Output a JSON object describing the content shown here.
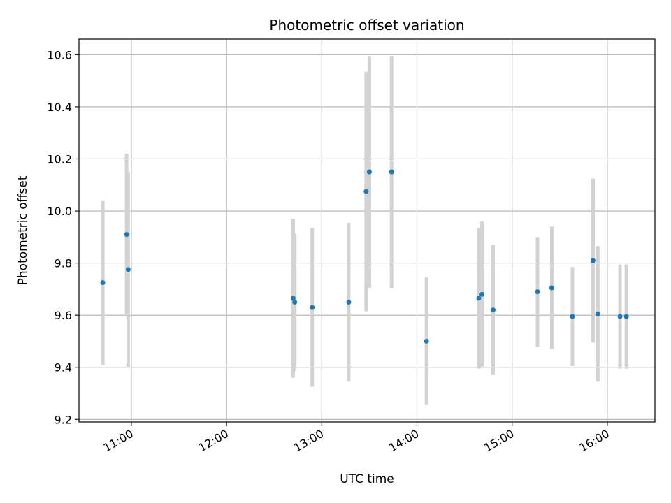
{
  "chart_data": {
    "type": "scatter",
    "title": "Photometric offset variation",
    "xlabel": "UTC time",
    "ylabel": "Photometric offset",
    "x_axis": "time",
    "xlim": [
      "10:27",
      "16:30"
    ],
    "ylim": [
      9.19,
      10.66
    ],
    "x_ticks": [
      "11:00",
      "12:00",
      "13:00",
      "14:00",
      "15:00",
      "16:00"
    ],
    "y_ticks": [
      9.2,
      9.4,
      9.6,
      9.8,
      10.0,
      10.2,
      10.4,
      10.6
    ],
    "grid": true,
    "legend": "none",
    "colors": {
      "point": "#1f77b4",
      "errorbar": "#d3d3d3",
      "grid": "#b0b0b0"
    },
    "points": [
      {
        "x": "10:42",
        "y": 9.725,
        "err": 0.315
      },
      {
        "x": "10:57",
        "y": 9.91,
        "err": 0.31
      },
      {
        "x": "10:58",
        "y": 9.775,
        "err": 0.375
      },
      {
        "x": "12:42",
        "y": 9.665,
        "err": 0.305
      },
      {
        "x": "12:43",
        "y": 9.65,
        "err": 0.265
      },
      {
        "x": "12:54",
        "y": 9.63,
        "err": 0.305
      },
      {
        "x": "13:17",
        "y": 9.65,
        "err": 0.305
      },
      {
        "x": "13:28",
        "y": 10.075,
        "err": 0.46
      },
      {
        "x": "13:30",
        "y": 10.15,
        "err": 0.445
      },
      {
        "x": "13:44",
        "y": 10.15,
        "err": 0.445
      },
      {
        "x": "14:06",
        "y": 9.5,
        "err": 0.245
      },
      {
        "x": "14:39",
        "y": 9.665,
        "err": 0.27
      },
      {
        "x": "14:41",
        "y": 9.68,
        "err": 0.28
      },
      {
        "x": "14:48",
        "y": 9.62,
        "err": 0.25
      },
      {
        "x": "15:16",
        "y": 9.69,
        "err": 0.21
      },
      {
        "x": "15:25",
        "y": 9.705,
        "err": 0.235
      },
      {
        "x": "15:38",
        "y": 9.595,
        "err": 0.19
      },
      {
        "x": "15:51",
        "y": 9.81,
        "err": 0.315
      },
      {
        "x": "15:54",
        "y": 9.605,
        "err": 0.26
      },
      {
        "x": "16:08",
        "y": 9.595,
        "err": 0.2
      },
      {
        "x": "16:12",
        "y": 9.595,
        "err": 0.2
      }
    ]
  }
}
